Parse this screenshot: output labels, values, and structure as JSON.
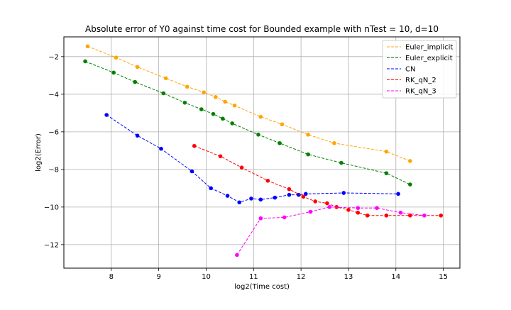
{
  "chart_data": {
    "type": "line",
    "title": "Absolute error of Y0 against time cost for Bounded example with nTest = 10, d=10",
    "xlabel": "log2(Time cost)",
    "ylabel": "log2(Error)",
    "xlim": [
      7.0,
      15.35
    ],
    "ylim": [
      -13.25,
      -0.95
    ],
    "xticks": [
      8,
      9,
      10,
      11,
      12,
      13,
      14,
      15
    ],
    "yticks": [
      -12,
      -10,
      -8,
      -6,
      -4,
      -2
    ],
    "grid": true,
    "legend_position": "top-right",
    "series": [
      {
        "name": "Euler_implicit",
        "color": "#ffa500",
        "x": [
          7.5,
          8.1,
          8.55,
          9.15,
          9.6,
          9.95,
          10.2,
          10.4,
          10.6,
          11.15,
          11.6,
          12.15,
          12.7,
          13.8,
          14.3
        ],
        "y": [
          -1.45,
          -2.05,
          -2.55,
          -3.15,
          -3.6,
          -3.9,
          -4.15,
          -4.4,
          -4.6,
          -5.2,
          -5.6,
          -6.15,
          -6.6,
          -7.05,
          -7.55
        ]
      },
      {
        "name": "Euler_explicit",
        "color": "#008000",
        "x": [
          7.45,
          8.05,
          8.5,
          9.1,
          9.55,
          9.9,
          10.15,
          10.35,
          10.55,
          11.1,
          11.55,
          12.15,
          12.85,
          13.8,
          14.3
        ],
        "y": [
          -2.25,
          -2.85,
          -3.35,
          -3.95,
          -4.45,
          -4.8,
          -5.05,
          -5.3,
          -5.55,
          -6.15,
          -6.6,
          -7.2,
          -7.65,
          -8.2,
          -8.8
        ]
      },
      {
        "name": "CN",
        "color": "#0000ff",
        "x": [
          7.9,
          8.55,
          9.05,
          9.7,
          10.1,
          10.45,
          10.7,
          10.95,
          11.15,
          11.45,
          11.75,
          11.95,
          12.1,
          12.9,
          14.05
        ],
        "y": [
          -5.1,
          -6.2,
          -6.9,
          -8.1,
          -9.0,
          -9.4,
          -9.75,
          -9.55,
          -9.6,
          -9.5,
          -9.35,
          -9.35,
          -9.3,
          -9.25,
          -9.3
        ]
      },
      {
        "name": "RK_qN_2",
        "color": "#ff0000",
        "x": [
          9.75,
          10.3,
          10.75,
          11.3,
          11.75,
          12.05,
          12.3,
          12.55,
          12.75,
          13.0,
          13.2,
          13.4,
          13.8,
          14.3,
          14.95
        ],
        "y": [
          -6.75,
          -7.3,
          -7.9,
          -8.6,
          -9.05,
          -9.45,
          -9.7,
          -9.8,
          -10.0,
          -10.15,
          -10.3,
          -10.45,
          -10.45,
          -10.45,
          -10.45
        ]
      },
      {
        "name": "RK_qN_3",
        "color": "#ff00ff",
        "x": [
          10.65,
          11.15,
          11.65,
          12.2,
          12.6,
          13.2,
          13.6,
          14.1,
          14.6
        ],
        "y": [
          -12.55,
          -10.6,
          -10.55,
          -10.25,
          -10.0,
          -10.05,
          -10.05,
          -10.3,
          -10.45
        ]
      }
    ]
  }
}
